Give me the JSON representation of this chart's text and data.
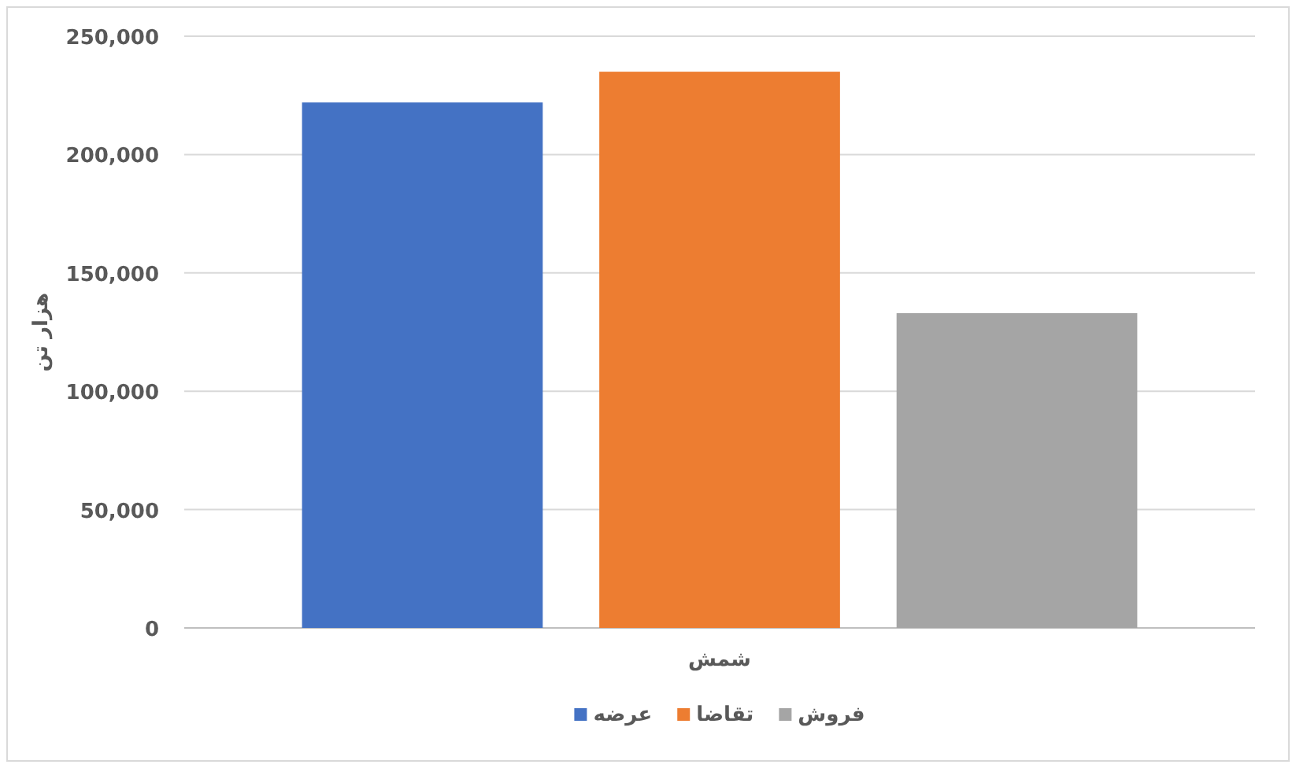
{
  "chart_data": {
    "type": "bar",
    "ylabel": "هزار تن",
    "categories": [
      "شمش"
    ],
    "series": [
      {
        "name": "عرضه",
        "color": "#4472c4",
        "values": [
          222000
        ]
      },
      {
        "name": "تقاضا",
        "color": "#ed7d31",
        "values": [
          235000
        ]
      },
      {
        "name": "فروش",
        "color": "#a5a5a5",
        "values": [
          133000
        ]
      }
    ],
    "ylim": [
      0,
      250000
    ],
    "yticks": [
      {
        "value": 0,
        "label": "0"
      },
      {
        "value": 50000,
        "label": "50,000"
      },
      {
        "value": 100000,
        "label": "100,000"
      },
      {
        "value": 150000,
        "label": "150,000"
      },
      {
        "value": 200000,
        "label": "200,000"
      },
      {
        "value": 250000,
        "label": "250,000"
      }
    ],
    "grid": "y",
    "legend": "bottom"
  }
}
